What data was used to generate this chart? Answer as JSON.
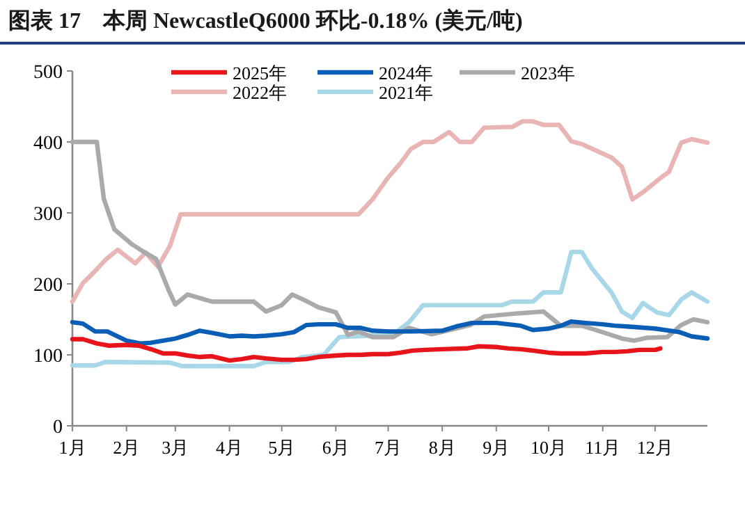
{
  "chart_data": {
    "type": "line",
    "title": "图表 17　本周 NewcastleQ6000 环比-0.18% (美元/吨)",
    "xlim": [
      "--01-01",
      "--12-31"
    ],
    "ylim": [
      0,
      500
    ],
    "yticks": [
      0,
      100,
      200,
      300,
      400,
      500
    ],
    "xticks": [
      {
        "value": "--01-01",
        "label": "1月"
      },
      {
        "value": "--02-01",
        "label": "2月"
      },
      {
        "value": "--03-01",
        "label": "3月"
      },
      {
        "value": "--04-01",
        "label": "4月"
      },
      {
        "value": "--05-01",
        "label": "5月"
      },
      {
        "value": "--06-01",
        "label": "6月"
      },
      {
        "value": "--07-01",
        "label": "7月"
      },
      {
        "value": "--08-01",
        "label": "8月"
      },
      {
        "value": "--09-01",
        "label": "9月"
      },
      {
        "value": "--10-01",
        "label": "10月"
      },
      {
        "value": "--11-01",
        "label": "11月"
      },
      {
        "value": "--12-01",
        "label": "12月"
      }
    ],
    "legend": "top",
    "marker": "none",
    "line_style": "solid",
    "series": [
      {
        "name": "2025年",
        "color": "#e8141c",
        "x": [
          "--01-01",
          "--01-07",
          "--01-15",
          "--01-22",
          "--02-01",
          "--02-08",
          "--02-15",
          "--02-22",
          "--03-01",
          "--03-08",
          "--03-15",
          "--03-22",
          "--04-01",
          "--04-08",
          "--04-15",
          "--04-22",
          "--05-01",
          "--05-08",
          "--05-15",
          "--05-22",
          "--06-01",
          "--06-08",
          "--06-15",
          "--06-22",
          "--07-01",
          "--07-08",
          "--07-15",
          "--07-22",
          "--08-01",
          "--08-15",
          "--08-22",
          "--09-01",
          "--09-08",
          "--09-15",
          "--09-22",
          "--10-01",
          "--10-08",
          "--10-15",
          "--10-22",
          "--11-01",
          "--11-08",
          "--11-15",
          "--11-22",
          "--12-01",
          "--12-04"
        ],
        "values": [
          122,
          122,
          116,
          113,
          114,
          113,
          108,
          102,
          102,
          99,
          97,
          98,
          92,
          94,
          97,
          95,
          93,
          93,
          94,
          97,
          99,
          100,
          100,
          101,
          101,
          103,
          106,
          107,
          108,
          109,
          112,
          111,
          109,
          108,
          106,
          103,
          102,
          102,
          102,
          104,
          104,
          105,
          107,
          107,
          109
        ]
      },
      {
        "name": "2024年",
        "color": "#0a5eb5",
        "x": [
          "--01-01",
          "--01-07",
          "--01-14",
          "--01-21",
          "--02-01",
          "--02-09",
          "--02-15",
          "--02-22",
          "--03-01",
          "--03-08",
          "--03-15",
          "--03-22",
          "--04-01",
          "--04-08",
          "--04-15",
          "--04-22",
          "--05-01",
          "--05-08",
          "--05-15",
          "--05-22",
          "--06-01",
          "--06-08",
          "--06-15",
          "--06-22",
          "--07-01",
          "--07-15",
          "--08-01",
          "--08-09",
          "--08-18",
          "--09-01",
          "--09-08",
          "--09-15",
          "--09-22",
          "--10-01",
          "--10-08",
          "--10-14",
          "--10-22",
          "--11-01",
          "--11-08",
          "--11-15",
          "--12-01",
          "--12-15",
          "--12-22",
          "--12-31"
        ],
        "values": [
          146,
          144,
          133,
          133,
          120,
          116,
          117,
          120,
          123,
          128,
          134,
          131,
          126,
          127,
          126,
          127,
          129,
          132,
          142,
          143,
          143,
          138,
          138,
          134,
          133,
          133,
          134,
          140,
          145,
          145,
          143,
          141,
          135,
          137,
          141,
          147,
          145,
          143,
          141,
          140,
          137,
          132,
          126,
          123
        ]
      },
      {
        "name": "2023年",
        "color": "#aaaaaa",
        "x": [
          "--01-01",
          "--01-08",
          "--01-15",
          "--01-19",
          "--01-25",
          "--02-04",
          "--02-11",
          "--02-18",
          "--02-25",
          "--03-01",
          "--03-08",
          "--03-15",
          "--03-22",
          "--04-01",
          "--04-15",
          "--04-22",
          "--05-01",
          "--05-07",
          "--05-15",
          "--05-22",
          "--06-01",
          "--06-08",
          "--06-14",
          "--06-22",
          "--07-04",
          "--07-13",
          "--07-26",
          "--08-07",
          "--08-17",
          "--08-25",
          "--09-11",
          "--09-28",
          "--10-08",
          "--10-20",
          "--10-28",
          "--11-12",
          "--11-19",
          "--11-26",
          "--12-08",
          "--12-16",
          "--12-23",
          "--12-31"
        ],
        "values": [
          400,
          400,
          400,
          320,
          277,
          256,
          245,
          235,
          192,
          171,
          185,
          180,
          175,
          175,
          175,
          161,
          170,
          185,
          176,
          167,
          160,
          128,
          133,
          125,
          125,
          138,
          129,
          136,
          142,
          154,
          158,
          161,
          141,
          141,
          135,
          123,
          120,
          124,
          125,
          142,
          150,
          146
        ]
      },
      {
        "name": "2022年",
        "color": "#e8b4b4",
        "x": [
          "--01-01",
          "--01-07",
          "--01-14",
          "--01-20",
          "--01-27",
          "--02-06",
          "--02-12",
          "--02-19",
          "--02-26",
          "--03-04",
          "--06-14",
          "--06-22",
          "--07-01",
          "--07-08",
          "--07-14",
          "--07-21",
          "--07-27",
          "--08-05",
          "--08-11",
          "--08-18",
          "--08-25",
          "--09-04",
          "--09-10",
          "--09-16",
          "--09-22",
          "--09-28",
          "--10-07",
          "--10-14",
          "--10-20",
          "--10-28",
          "--11-06",
          "--11-12",
          "--11-18",
          "--11-24",
          "--12-04",
          "--12-09",
          "--12-16",
          "--12-22",
          "--12-31"
        ],
        "values": [
          175,
          201,
          218,
          234,
          248,
          229,
          244,
          224,
          254,
          298,
          298,
          319,
          350,
          370,
          390,
          400,
          400,
          414,
          400,
          400,
          420,
          421,
          421,
          429,
          429,
          424,
          424,
          401,
          397,
          388,
          378,
          365,
          319,
          329,
          349,
          358,
          399,
          404,
          399
        ]
      },
      {
        "name": "2021年",
        "color": "#a8d8e8",
        "x": [
          "--01-01",
          "--01-14",
          "--01-20",
          "--02-26",
          "--03-05",
          "--04-15",
          "--04-22",
          "--05-05",
          "--05-13",
          "--05-25",
          "--06-03",
          "--06-20",
          "--07-04",
          "--07-13",
          "--07-21",
          "--09-04",
          "--09-10",
          "--09-22",
          "--09-28",
          "--10-08",
          "--10-14",
          "--10-20",
          "--10-26",
          "--11-06",
          "--11-12",
          "--11-18",
          "--11-24",
          "--12-02",
          "--12-09",
          "--12-16",
          "--12-22",
          "--12-31"
        ],
        "values": [
          85,
          85,
          90,
          89,
          84,
          84,
          90,
          90,
          97,
          100,
          125,
          127,
          129,
          146,
          170,
          170,
          175,
          175,
          188,
          188,
          245,
          245,
          221,
          188,
          161,
          152,
          173,
          160,
          156,
          178,
          188,
          175
        ]
      }
    ]
  }
}
